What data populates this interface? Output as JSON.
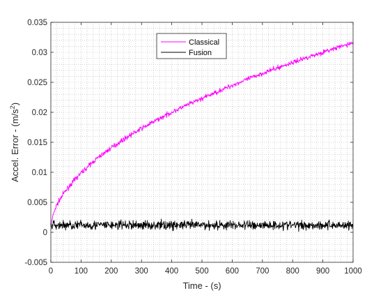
{
  "chart_data": {
    "type": "line",
    "title": "",
    "xlabel": "Time - (s)",
    "ylabel": "Accel. Error - (m/s",
    "ylabel_sup": "2",
    "ylabel_close": ")",
    "xlim": [
      0,
      1000
    ],
    "ylim": [
      -0.005,
      0.035
    ],
    "xticks": [
      0,
      100,
      200,
      300,
      400,
      500,
      600,
      700,
      800,
      900,
      1000
    ],
    "xtick_labels": [
      "0",
      "100",
      "200",
      "300",
      "400",
      "500",
      "600",
      "700",
      "800",
      "900",
      "1000"
    ],
    "yticks": [
      -0.005,
      0,
      0.005,
      0.01,
      0.015,
      0.02,
      0.025,
      0.03,
      0.035
    ],
    "ytick_labels": [
      "-0.005",
      "0",
      "0.005",
      "0.01",
      "0.015",
      "0.02",
      "0.025",
      "0.03",
      "0.035"
    ],
    "grid": "minor-dotted",
    "legend_position": "top-center",
    "series": [
      {
        "name": "Classical",
        "color": "#ff00ff",
        "x": [
          0,
          10,
          20,
          40,
          60,
          80,
          100,
          150,
          200,
          250,
          300,
          350,
          400,
          450,
          500,
          550,
          600,
          650,
          700,
          750,
          800,
          850,
          900,
          950,
          1000
        ],
        "y": [
          0.0012,
          0.0033,
          0.0046,
          0.0063,
          0.0076,
          0.0088,
          0.0099,
          0.0122,
          0.0141,
          0.0158,
          0.0173,
          0.0187,
          0.02,
          0.0212,
          0.0223,
          0.0234,
          0.0245,
          0.0255,
          0.0265,
          0.0274,
          0.0283,
          0.0292,
          0.03,
          0.0308,
          0.0316
        ],
        "noise": 0.0002
      },
      {
        "name": "Fusion",
        "color": "#000000",
        "x": [
          0,
          1000
        ],
        "y": [
          0.0012,
          0.0012
        ],
        "noise": 0.0004
      }
    ]
  }
}
